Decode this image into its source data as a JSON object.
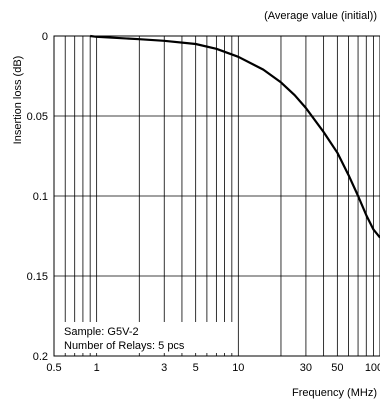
{
  "chart_data": {
    "type": "line",
    "title": "(Average value (initial))",
    "xlabel": "Frequency (MHz)",
    "ylabel": "Insertion loss (dB)",
    "x_scale": "log",
    "y_inverted": true,
    "xlim": [
      0.5,
      100
    ],
    "ylim": [
      0,
      0.2
    ],
    "grid": true,
    "x_ticks": [
      {
        "value": 0.5,
        "label": "0.5"
      },
      {
        "value": 1,
        "label": "1"
      },
      {
        "value": 3,
        "label": "3"
      },
      {
        "value": 5,
        "label": "5"
      },
      {
        "value": 10,
        "label": "10"
      },
      {
        "value": 30,
        "label": "30"
      },
      {
        "value": 50,
        "label": "50"
      },
      {
        "value": 100,
        "label": "100"
      }
    ],
    "x_minor_gridlines": [
      0.6,
      0.7,
      0.8,
      0.9,
      2,
      3,
      4,
      5,
      6,
      7,
      8,
      9,
      20,
      30,
      40,
      50,
      60,
      70,
      80,
      90
    ],
    "y_ticks": [
      {
        "value": 0,
        "label": "0"
      },
      {
        "value": 0.05,
        "label": "0.05"
      },
      {
        "value": 0.1,
        "label": "0.1"
      },
      {
        "value": 0.15,
        "label": "0.15"
      },
      {
        "value": 0.2,
        "label": "0.2"
      }
    ],
    "series": [
      {
        "x": [
          0.9,
          1,
          2,
          3,
          5,
          7,
          10,
          15,
          20,
          25,
          30,
          40,
          50,
          60,
          70,
          80,
          90,
          100
        ],
        "y": [
          0.0,
          0.0005,
          0.002,
          0.003,
          0.005,
          0.008,
          0.013,
          0.021,
          0.029,
          0.037,
          0.045,
          0.06,
          0.073,
          0.087,
          0.1,
          0.112,
          0.121,
          0.126
        ]
      }
    ],
    "annotations": [
      "Sample: G5V-2",
      "Number of Relays: 5 pcs"
    ]
  }
}
